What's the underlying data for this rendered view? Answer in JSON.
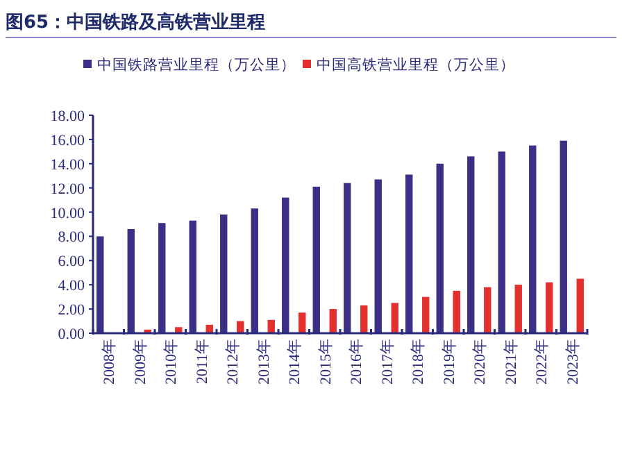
{
  "chart_data": {
    "type": "bar",
    "title": "图65：中国铁路及高铁营业里程",
    "categories": [
      "2008年",
      "2009年",
      "2010年",
      "2011年",
      "2012年",
      "2013年",
      "2014年",
      "2015年",
      "2016年",
      "2017年",
      "2018年",
      "2019年",
      "2020年",
      "2021年",
      "2022年",
      "2023年"
    ],
    "series": [
      {
        "name": "中国铁路营业里程（万公里）",
        "color": "#3b2f87",
        "values": [
          8.0,
          8.6,
          9.1,
          9.3,
          9.8,
          10.3,
          11.2,
          12.1,
          12.4,
          12.7,
          13.1,
          14.0,
          14.6,
          15.0,
          15.5,
          15.9
        ]
      },
      {
        "name": "中国高铁营业里程（万公里）",
        "color": "#e3302f",
        "values": [
          null,
          0.3,
          0.5,
          0.7,
          1.0,
          1.1,
          1.7,
          2.0,
          2.3,
          2.5,
          3.0,
          3.5,
          3.8,
          4.0,
          4.2,
          4.5
        ]
      }
    ],
    "ylim": [
      0,
      18
    ],
    "yticks": [
      {
        "value": 0,
        "label": "0.00"
      },
      {
        "value": 2,
        "label": "2.00"
      },
      {
        "value": 4,
        "label": "4.00"
      },
      {
        "value": 6,
        "label": "6.00"
      },
      {
        "value": 8,
        "label": "8.00"
      },
      {
        "value": 10,
        "label": "10.00"
      },
      {
        "value": 12,
        "label": "12.00"
      },
      {
        "value": 14,
        "label": "14.00"
      },
      {
        "value": 16,
        "label": "16.00"
      },
      {
        "value": 18,
        "label": "18.00"
      }
    ],
    "legend": "top",
    "grid": false
  }
}
